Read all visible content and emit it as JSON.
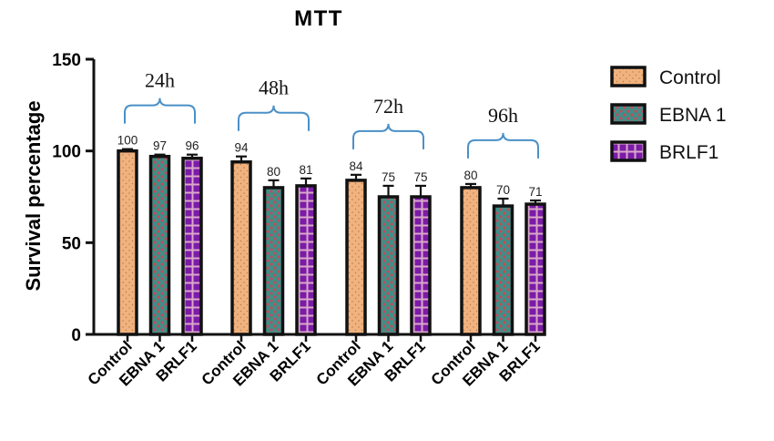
{
  "colors": {
    "control": "#f0b27e",
    "ebna1": "#3a8a84",
    "brlf1": "#7a1aa6",
    "bracket": "#4a90c8",
    "axis": "#111111"
  },
  "chart_data": {
    "type": "bar",
    "title": "MTT",
    "ylabel": "Survival percentage",
    "xlabel": "",
    "ylim": [
      0,
      150
    ],
    "yticks": [
      0,
      50,
      100,
      150
    ],
    "grid": false,
    "legend_position": "right",
    "groups": [
      {
        "label": "24h",
        "bars": [
          {
            "series": "Control",
            "category": "Control",
            "value": 100,
            "label": "100",
            "error": 1
          },
          {
            "series": "EBNA 1",
            "category": "EBNA 1",
            "value": 97,
            "label": "97",
            "error": 1
          },
          {
            "series": "BRLF1",
            "category": "BRLF1",
            "value": 96,
            "label": "96",
            "error": 2
          }
        ]
      },
      {
        "label": "48h",
        "bars": [
          {
            "series": "Control",
            "category": "Control",
            "value": 94,
            "label": "94",
            "error": 3
          },
          {
            "series": "EBNA 1",
            "category": "EBNA 1",
            "value": 80,
            "label": "80",
            "error": 4
          },
          {
            "series": "BRLF1",
            "category": "BRLF1",
            "value": 81,
            "label": "81",
            "error": 4
          }
        ]
      },
      {
        "label": "72h",
        "bars": [
          {
            "series": "Control",
            "category": "Control",
            "value": 84,
            "label": "84",
            "error": 3
          },
          {
            "series": "EBNA 1",
            "category": "EBNA 1",
            "value": 75,
            "label": "75",
            "error": 6
          },
          {
            "series": "BRLF1",
            "category": "BRLF1",
            "value": 75,
            "label": "75",
            "error": 6
          }
        ]
      },
      {
        "label": "96h",
        "bars": [
          {
            "series": "Control",
            "category": "Control",
            "value": 80,
            "label": "80",
            "error": 2
          },
          {
            "series": "EBNA 1",
            "category": "EBNA 1",
            "value": 70,
            "label": "70",
            "error": 4
          },
          {
            "series": "BRLF1",
            "category": "BRLF1",
            "value": 71,
            "label": "71",
            "error": 2
          }
        ]
      }
    ],
    "legend": [
      "Control",
      "EBNA 1",
      "BRLF1"
    ]
  }
}
